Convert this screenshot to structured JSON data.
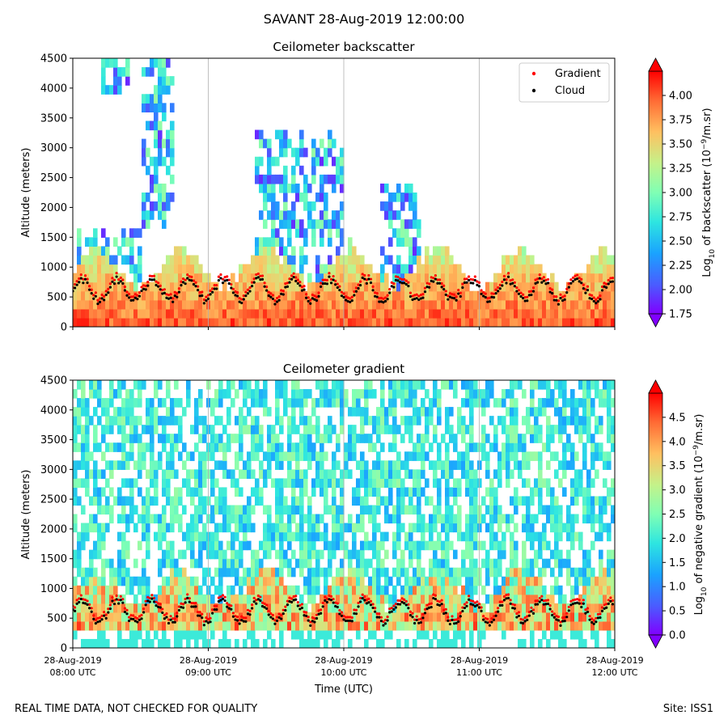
{
  "figure": {
    "title": "SAVANT 28-Aug-2019 12:00:00",
    "footer_left": "REAL TIME DATA, NOT CHECKED FOR QUALITY",
    "footer_right": "Site: ISS1"
  },
  "chart_data": [
    {
      "type": "heatmap",
      "title": "Ceilometer backscatter",
      "xlabel": "",
      "ylabel": "Altitude (meters)",
      "ylim": [
        0,
        4500
      ],
      "yticks": [
        "0",
        "500",
        "1000",
        "1500",
        "2000",
        "2500",
        "3000",
        "3500",
        "4000",
        "4500"
      ],
      "xlim_hours_utc": [
        8,
        12
      ],
      "xticks_hours_utc": [
        8,
        9,
        10,
        11,
        12
      ],
      "grid": "vertical",
      "colorscale": "rainbow",
      "colorbar_label": "Log10 of backscatter (10^-9/m.sr)",
      "colorbar_range": [
        1.75,
        4.25
      ],
      "colorbar_ticks": [
        "1.75",
        "2.00",
        "2.25",
        "2.50",
        "2.75",
        "3.00",
        "3.25",
        "3.50",
        "3.75",
        "4.00"
      ],
      "legend": {
        "position": "top-right",
        "entries": [
          {
            "label": "Gradient",
            "color": "#ff0000"
          },
          {
            "label": "Cloud",
            "color": "#000000"
          }
        ]
      }
    },
    {
      "type": "heatmap",
      "title": "Ceilometer gradient",
      "xlabel": "Time (UTC)",
      "ylabel": "Altitude (meters)",
      "ylim": [
        0,
        4500
      ],
      "yticks": [
        "0",
        "500",
        "1000",
        "1500",
        "2000",
        "2500",
        "3000",
        "3500",
        "4000",
        "4500"
      ],
      "xlim_hours_utc": [
        8,
        12
      ],
      "xticks_hours_utc": [
        8,
        9,
        10,
        11,
        12
      ],
      "xtick_labels": [
        [
          "28-Aug-2019",
          "08:00 UTC"
        ],
        [
          "28-Aug-2019",
          "09:00 UTC"
        ],
        [
          "28-Aug-2019",
          "10:00 UTC"
        ],
        [
          "28-Aug-2019",
          "11:00 UTC"
        ],
        [
          "28-Aug-2019",
          "12:00 UTC"
        ]
      ],
      "grid": "vertical",
      "colorscale": "rainbow",
      "colorbar_label": "Log10 of negative gradient (10^-9/m.sr)",
      "colorbar_range": [
        0,
        5
      ],
      "colorbar_ticks": [
        "0.0",
        "0.5",
        "1.0",
        "1.5",
        "2.0",
        "2.5",
        "3.0",
        "3.5",
        "4.0",
        "4.5"
      ]
    }
  ]
}
